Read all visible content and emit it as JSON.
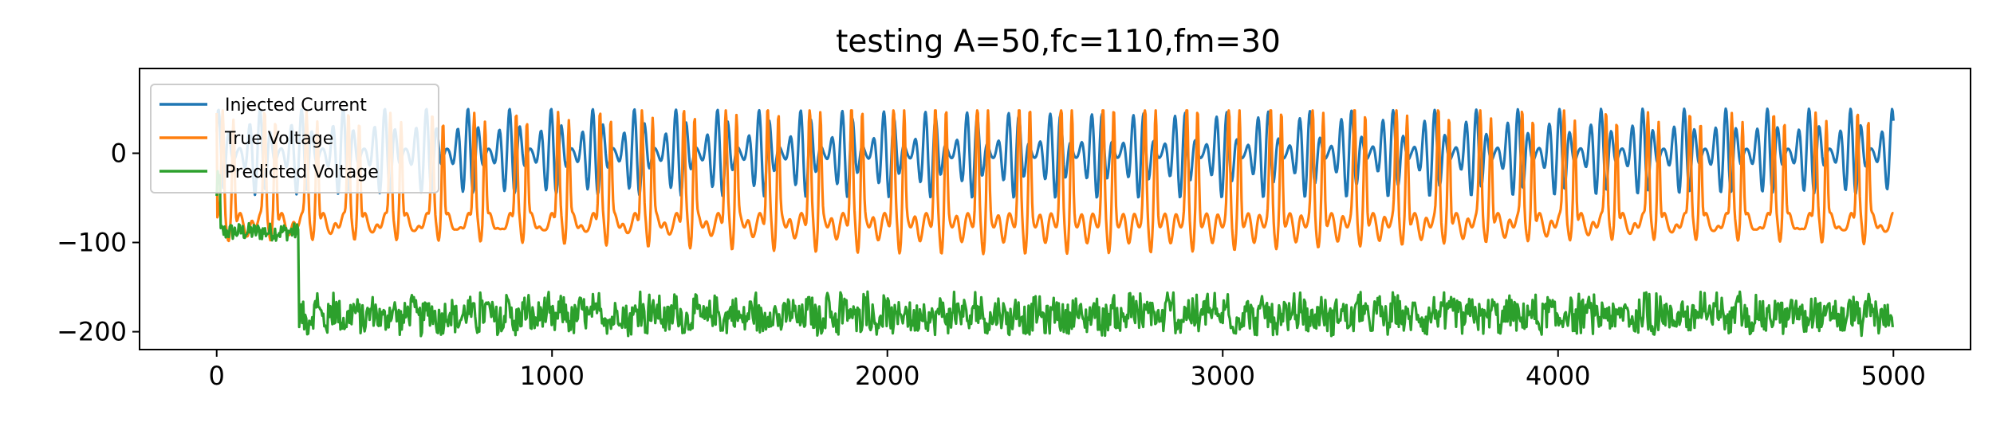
{
  "chart_data": {
    "type": "line",
    "title": "testing A=50,fc=110,fm=30",
    "xlabel": "",
    "ylabel": "",
    "xlim": [
      -230,
      5230
    ],
    "ylim": [
      -220,
      95
    ],
    "xticks": [
      0,
      1000,
      2000,
      3000,
      4000,
      5000
    ],
    "xtick_labels": [
      "0",
      "1000",
      "2000",
      "3000",
      "4000",
      "5000"
    ],
    "yticks": [
      0,
      -100,
      -200
    ],
    "ytick_labels": [
      "0",
      "−100",
      "−200"
    ],
    "grid": false,
    "legend_position": "upper-left",
    "x_range": [
      0,
      5000
    ],
    "series": [
      {
        "name": "Injected Current",
        "color": "#1f77b4",
        "description": "amplitude-modulated sinusoid",
        "amplitude": 50,
        "carrier_period_samples": 110,
        "modulation_period_samples": 30,
        "offset": 0
      },
      {
        "name": "True Voltage",
        "color": "#ff7f0e",
        "description": "spiking voltage response",
        "baseline": -75,
        "peak": 48,
        "trough": -120
      },
      {
        "name": "Predicted Voltage",
        "color": "#2ca02c",
        "description": "noisy prediction",
        "initial_segment": {
          "x_end": 245,
          "level": -88
        },
        "main_level": -182,
        "min": -205,
        "max": -155
      }
    ]
  }
}
